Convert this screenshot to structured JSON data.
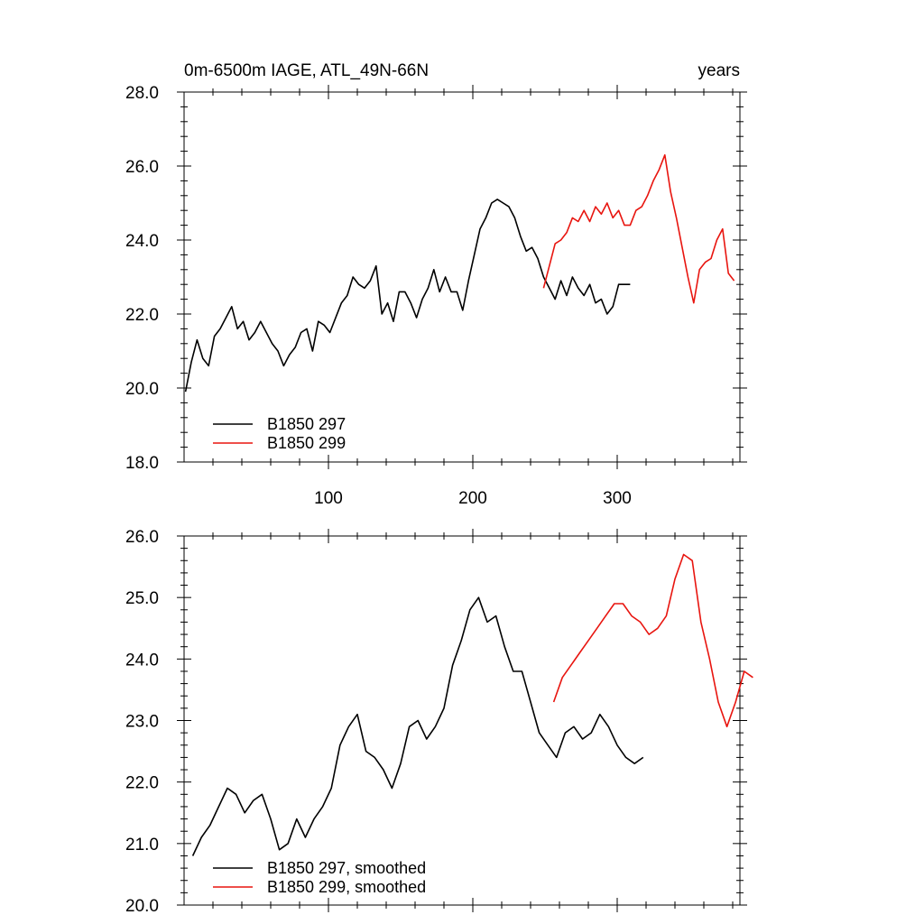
{
  "chart_data": [
    {
      "type": "line",
      "title": "0m-6500m IAGE, ATL_49N-66N",
      "title_right": "years",
      "xlim": [
        0,
        385
      ],
      "ylim": [
        18.0,
        28.0
      ],
      "x_ticks": [
        100,
        200,
        300
      ],
      "x_tick_labels": [
        "100",
        "200",
        "300"
      ],
      "y_ticks": [
        18.0,
        20.0,
        22.0,
        24.0,
        26.0,
        28.0
      ],
      "y_tick_labels": [
        "18.0",
        "20.0",
        "22.0",
        "24.0",
        "26.0",
        "28.0"
      ],
      "legend_position": "bottom-left",
      "series": [
        {
          "name": "B1850 297",
          "color": "#000000",
          "x_start": 1,
          "x_step": 4,
          "values": [
            19.9,
            20.7,
            21.3,
            20.8,
            20.6,
            21.4,
            21.6,
            21.9,
            22.2,
            21.6,
            21.8,
            21.3,
            21.5,
            21.8,
            21.5,
            21.2,
            21.0,
            20.6,
            20.9,
            21.1,
            21.5,
            21.6,
            21.0,
            21.8,
            21.7,
            21.5,
            21.9,
            22.3,
            22.5,
            23.0,
            22.8,
            22.7,
            22.9,
            23.3,
            22.0,
            22.3,
            21.8,
            22.6,
            22.6,
            22.3,
            21.9,
            22.4,
            22.7,
            23.2,
            22.6,
            23.0,
            22.6,
            22.6,
            22.1,
            22.9,
            23.6,
            24.3,
            24.6,
            25.0,
            25.1,
            25.0,
            24.9,
            24.6,
            24.1,
            23.7,
            23.8,
            23.5,
            23.0,
            22.7,
            22.4,
            22.9,
            22.5,
            23.0,
            22.7,
            22.5,
            22.8,
            22.3,
            22.4,
            22.0,
            22.2,
            22.8,
            22.8,
            22.8
          ]
        },
        {
          "name": "B1850 299",
          "color": "#e8150f",
          "x_start": 249,
          "x_step": 4,
          "values": [
            22.7,
            23.3,
            23.9,
            24.0,
            24.2,
            24.6,
            24.5,
            24.8,
            24.5,
            24.9,
            24.7,
            25.0,
            24.6,
            24.8,
            24.4,
            24.4,
            24.8,
            24.9,
            25.2,
            25.6,
            25.9,
            26.3,
            25.3,
            24.6,
            23.8,
            23.0,
            22.3,
            23.2,
            23.4,
            23.5,
            24.0,
            24.3,
            23.1,
            22.9
          ]
        }
      ]
    },
    {
      "type": "line",
      "xlim": [
        0,
        385
      ],
      "ylim": [
        20.0,
        26.0
      ],
      "y_ticks": [
        20.0,
        21.0,
        22.0,
        23.0,
        24.0,
        25.0,
        26.0
      ],
      "y_tick_labels": [
        "20.0",
        "21.0",
        "22.0",
        "23.0",
        "24.0",
        "25.0",
        "26.0"
      ],
      "legend_position": "bottom-left",
      "series": [
        {
          "name": "B1850 297, smoothed",
          "color": "#000000",
          "x_start": 6,
          "x_step": 6,
          "values": [
            20.8,
            21.1,
            21.3,
            21.6,
            21.9,
            21.8,
            21.5,
            21.7,
            21.8,
            21.4,
            20.9,
            21.0,
            21.4,
            21.1,
            21.4,
            21.6,
            21.9,
            22.6,
            22.9,
            23.1,
            22.5,
            22.4,
            22.2,
            21.9,
            22.3,
            22.9,
            23.0,
            22.7,
            22.9,
            23.2,
            23.9,
            24.3,
            24.8,
            25.0,
            24.6,
            24.7,
            24.2,
            23.8,
            23.8,
            23.3,
            22.8,
            22.6,
            22.4,
            22.8,
            22.9,
            22.7,
            22.8,
            23.1,
            22.9,
            22.6,
            22.4,
            22.3,
            22.4
          ]
        },
        {
          "name": "B1850 299, smoothed",
          "color": "#e8150f",
          "x_start": 256,
          "x_step": 6,
          "values": [
            23.3,
            23.7,
            23.9,
            24.1,
            24.3,
            24.5,
            24.7,
            24.9,
            24.9,
            24.7,
            24.6,
            24.4,
            24.5,
            24.7,
            25.3,
            25.7,
            25.6,
            24.6,
            24.0,
            23.3,
            22.9,
            23.3,
            23.8,
            23.7
          ]
        }
      ]
    }
  ]
}
